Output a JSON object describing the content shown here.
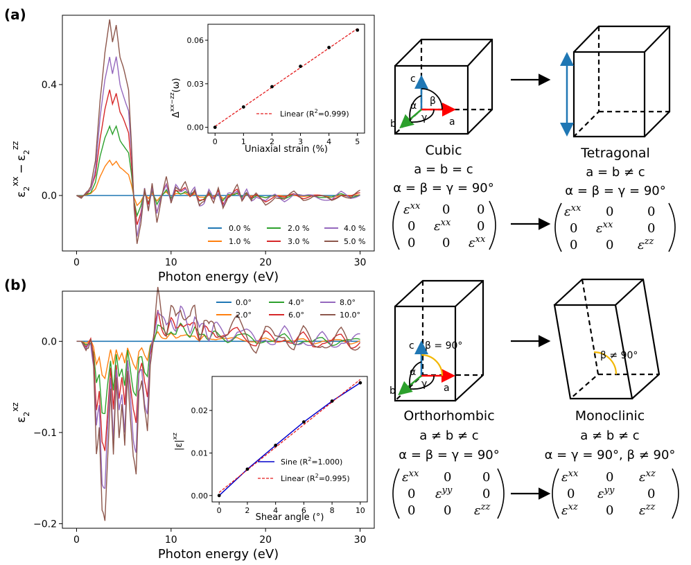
{
  "colors": {
    "c0": "#1f77b4",
    "c1": "#ff7f0e",
    "c2": "#2ca02c",
    "c3": "#d62728",
    "c4": "#9467bd",
    "c5": "#8c564b",
    "axis_c": "#1f77b4",
    "axis_a": "#ff0000",
    "axis_b": "#2ca02c",
    "beta_arc": "#f2b705",
    "fit_line": "#e41a1c",
    "sine_line": "#0000cc"
  },
  "panel_a": {
    "label": "(a)",
    "chart_data": {
      "type": "line",
      "xlabel": "Photon energy (eV)",
      "ylabel_main": "ε̂₂ˣˣ − ε̂₂ᶻᶻ",
      "ylabel_parts": [
        "ε",
        "2",
        "xx",
        "−",
        "ε",
        "2",
        "zz"
      ],
      "xlim": [
        -1.5,
        31.5
      ],
      "ylim": [
        -0.2,
        0.65
      ],
      "xticks": [
        0,
        10,
        20,
        30
      ],
      "xtick_labels": [
        "0",
        "10",
        "20",
        "30"
      ],
      "yticks": [
        0.0,
        0.4
      ],
      "ytick_labels": [
        "0.0",
        "0.4"
      ],
      "legend": [
        "0.0 %",
        "1.0 %",
        "2.0 %",
        "3.0 %",
        "4.0 %",
        "5.0 %"
      ],
      "base_x": [
        0,
        0.5,
        1.0,
        1.5,
        2.0,
        2.5,
        3.0,
        3.5,
        3.8,
        4.2,
        4.6,
        5.0,
        5.5,
        5.8,
        6.1,
        6.4,
        6.8,
        7.2,
        7.6,
        8.0,
        8.5,
        9.0,
        9.5,
        10,
        10.5,
        11,
        11.5,
        12,
        12.5,
        13,
        13.5,
        14,
        14.5,
        15,
        15.5,
        16,
        16.5,
        17,
        17.5,
        18,
        18.5,
        19,
        20,
        21,
        22,
        23,
        24,
        25,
        26,
        27,
        28,
        29,
        30
      ],
      "base_y": [
        0,
        -0.01,
        0.01,
        0.03,
        0.12,
        0.35,
        0.52,
        0.63,
        0.55,
        0.62,
        0.5,
        0.45,
        0.38,
        0.2,
        -0.05,
        -0.18,
        -0.1,
        0.03,
        -0.06,
        0.04,
        -0.09,
        0.0,
        0.06,
        -0.03,
        0.04,
        0.02,
        0.04,
        0.0,
        0.03,
        -0.04,
        -0.03,
        0.02,
        -0.02,
        0.02,
        -0.05,
        0.0,
        0.01,
        0.03,
        -0.02,
        0.02,
        -0.02,
        0.0,
        -0.03,
        0.0,
        -0.02,
        0.01,
        -0.01,
        0.0,
        -0.01,
        -0.02,
        0.01,
        -0.01,
        0.01
      ],
      "scales": [
        0.0,
        0.2,
        0.4,
        0.6,
        0.8,
        1.0
      ],
      "inset": {
        "type": "scatter+line",
        "xlabel": "Uniaxial strain (%)",
        "ylabel": "Δ̂ₓₓ₋zz(ω)",
        "ylabel_main": "Δ",
        "ylabel_sup": "xx−zz",
        "ylabel_tail": "(ω)",
        "x": [
          0,
          1,
          2,
          3,
          4,
          5
        ],
        "y": [
          0.0,
          0.014,
          0.028,
          0.042,
          0.055,
          0.067
        ],
        "fit": "Linear (R²=0.999)",
        "fit_prefix": "Linear (R",
        "fit_exp": "2",
        "fit_suffix": "=0.999)",
        "xticks": [
          0,
          1,
          2,
          3,
          4,
          5
        ],
        "xtick_labels": [
          "0",
          "1",
          "2",
          "3",
          "4",
          "5"
        ],
        "yticks": [
          0.0,
          0.03,
          0.06
        ],
        "ytick_labels": [
          "0.00",
          "0.03",
          "0.06"
        ],
        "xlim": [
          -0.25,
          5.25
        ],
        "ylim": [
          -0.004,
          0.071
        ]
      }
    }
  },
  "panel_b": {
    "label": "(b)",
    "chart_data": {
      "type": "line",
      "xlabel": "Photon energy (eV)",
      "ylabel_main": "ε̂₂ˣᶻ",
      "ylabel_parts": [
        "ε",
        "2",
        "xz"
      ],
      "xlim": [
        -1.5,
        31.5
      ],
      "ylim": [
        -0.205,
        0.055
      ],
      "xticks": [
        0,
        10,
        20,
        30
      ],
      "xtick_labels": [
        "0",
        "10",
        "20",
        "30"
      ],
      "yticks": [
        0.0,
        -0.1,
        -0.2
      ],
      "ytick_labels": [
        "0.0",
        "−0.1",
        "−0.2"
      ],
      "legend": [
        "0.0°",
        "2.0°",
        "4.0°",
        "6.0°",
        "8.0°",
        "10.0°"
      ],
      "base_x": [
        0,
        0.5,
        1.0,
        1.5,
        1.8,
        2.1,
        2.4,
        2.7,
        3.0,
        3.3,
        3.6,
        3.9,
        4.2,
        4.5,
        4.8,
        5.1,
        5.4,
        5.7,
        6.0,
        6.3,
        6.6,
        6.9,
        7.2,
        7.5,
        7.8,
        8.2,
        8.6,
        9.0,
        9.5,
        10,
        10.5,
        11,
        11.5,
        12,
        12.5,
        13,
        13.5,
        14,
        14.5,
        15,
        16,
        17,
        18,
        19,
        20,
        21,
        22,
        23,
        24,
        25,
        26,
        27,
        28,
        29,
        30
      ],
      "base_y": [
        0,
        0.0,
        -0.01,
        0.0,
        -0.03,
        -0.12,
        -0.09,
        -0.19,
        -0.2,
        -0.12,
        -0.05,
        -0.13,
        -0.04,
        -0.1,
        -0.07,
        -0.12,
        -0.03,
        -0.08,
        -0.13,
        -0.15,
        -0.05,
        -0.04,
        -0.08,
        -0.1,
        -0.02,
        0.01,
        0.05,
        0.03,
        0.015,
        0.035,
        0.02,
        0.04,
        0.03,
        0.02,
        0.035,
        0.01,
        0.025,
        0.01,
        0.02,
        0.015,
        0.005,
        0.02,
        0.01,
        -0.005,
        0.01,
        0.0,
        0.012,
        -0.005,
        0.008,
        -0.006,
        0.004,
        -0.004,
        0.006,
        -0.005,
        0.003
      ],
      "scales": [
        0.0,
        0.2,
        0.4,
        0.6,
        0.8,
        1.0
      ],
      "inset": {
        "type": "scatter+line",
        "xlabel": "Shear angle (°)",
        "ylabel": "|ε̂ˣᶻ|",
        "ylabel_main": "|ε|",
        "ylabel_sup": "xz",
        "x": [
          0,
          2,
          4,
          6,
          8,
          10
        ],
        "y": [
          0.0,
          0.0062,
          0.0118,
          0.0173,
          0.0222,
          0.0265
        ],
        "fits": [
          "Sine (R²=1.000)",
          "Linear (R²=0.995)"
        ],
        "fit1_prefix": "Sine (R",
        "fit1_suffix": "=1.000)",
        "fit2_prefix": "Linear (R",
        "fit2_suffix": "=0.995)",
        "fit_exp": "2",
        "xticks": [
          0,
          2,
          4,
          6,
          8,
          10
        ],
        "xtick_labels": [
          "0",
          "2",
          "4",
          "6",
          "8",
          "10"
        ],
        "yticks": [
          0.0,
          0.01,
          0.02
        ],
        "ytick_labels": [
          "0.00",
          "0.01",
          "0.02"
        ],
        "xlim": [
          -0.5,
          10.5
        ],
        "ylim": [
          -0.0015,
          0.028
        ]
      }
    }
  },
  "schematic": {
    "axis_c": "c",
    "axis_a": "a",
    "axis_b": "b",
    "alpha": "α",
    "beta": "β",
    "gamma": "γ",
    "beta_90": "β = 90°",
    "beta_not_90": "β ≠ 90°",
    "cubic": {
      "name": "Cubic",
      "line1": "a = b = c",
      "line2": "α = β = γ = 90°",
      "m": [
        "ε",
        "xx",
        "0",
        "0",
        "0",
        "ε",
        "xx",
        "0",
        "0",
        "0",
        "ε",
        "xx"
      ]
    },
    "tetragonal": {
      "name": "Tetragonal",
      "line1": "a = b ≠ c",
      "line2": "α = β = γ = 90°",
      "m": [
        "ε",
        "xx",
        "0",
        "0",
        "0",
        "ε",
        "xx",
        "0",
        "0",
        "0",
        "ε",
        "zz"
      ]
    },
    "orthorhombic": {
      "name": "Orthorhombic",
      "line1": "a ≠ b ≠ c",
      "line2": "α = β = γ = 90°",
      "m": [
        "ε",
        "xx",
        "0",
        "0",
        "0",
        "ε",
        "yy",
        "0",
        "0",
        "0",
        "ε",
        "zz"
      ]
    },
    "monoclinic": {
      "name": "Monoclinic",
      "line1": "a ≠ b ≠ c",
      "line2": "α = γ = 90°, β ≠ 90°",
      "m": [
        "ε",
        "xx",
        "0",
        "ε",
        "xz",
        "0",
        "ε",
        "yy",
        "0",
        "ε",
        "xz",
        "0",
        "ε",
        "zz"
      ]
    }
  }
}
